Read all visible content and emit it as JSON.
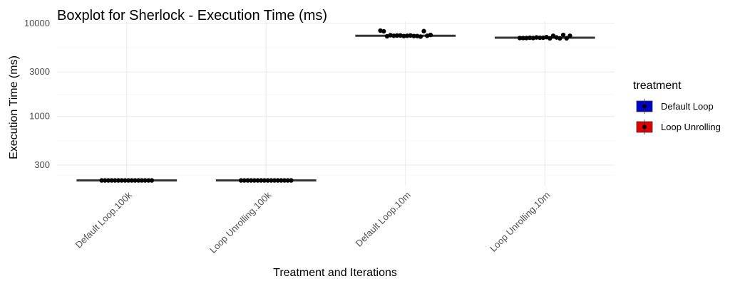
{
  "chart_data": {
    "type": "boxplot",
    "title": "Boxplot for Sherlock - Execution Time (ms)",
    "xlabel": "Treatment and Iterations",
    "ylabel": "Execution Time (ms)",
    "y_scale": "log10",
    "ylim": [
      180,
      10500
    ],
    "yticks": [
      300,
      1000,
      3000,
      10000
    ],
    "categories": [
      "Default Loop.100k",
      "Loop Unrolling.100k",
      "Default Loop.10m",
      "Loop Unrolling.10m"
    ],
    "grid": true,
    "legend": {
      "title": "treatment",
      "position": "right",
      "items": [
        {
          "label": "Default Loop",
          "color": "#0000CD"
        },
        {
          "label": "Loop Unrolling",
          "color": "#E00000"
        }
      ]
    },
    "boxes": [
      {
        "category": "Default Loop.100k",
        "treatment": "Default Loop",
        "median": 205
      },
      {
        "category": "Loop Unrolling.100k",
        "treatment": "Loop Unrolling",
        "median": 205
      },
      {
        "category": "Default Loop.10m",
        "treatment": "Default Loop",
        "median": 7350
      },
      {
        "category": "Loop Unrolling.10m",
        "treatment": "Loop Unrolling",
        "median": 7000
      }
    ],
    "points": [
      {
        "category": "Default Loop.100k",
        "values": [
          205,
          205,
          205,
          205,
          205,
          205,
          205,
          205,
          205,
          205,
          205,
          205,
          205,
          205,
          205,
          205
        ]
      },
      {
        "category": "Loop Unrolling.100k",
        "values": [
          205,
          205,
          205,
          205,
          205,
          205,
          205,
          205,
          205,
          205,
          205,
          205,
          205,
          205,
          205,
          205
        ]
      },
      {
        "category": "Default Loop.10m",
        "values": [
          8350,
          7300,
          7350,
          7400,
          7200,
          7450,
          7300,
          8200,
          7350,
          7500,
          7400,
          8250,
          7350,
          7300,
          7250,
          7400
        ]
      },
      {
        "category": "Loop Unrolling.10m",
        "values": [
          6950,
          7000,
          6900,
          7050,
          6900,
          7000,
          7350,
          6950,
          7100,
          7350,
          7000,
          7500,
          6950,
          7050,
          6950,
          6900
        ]
      }
    ]
  }
}
